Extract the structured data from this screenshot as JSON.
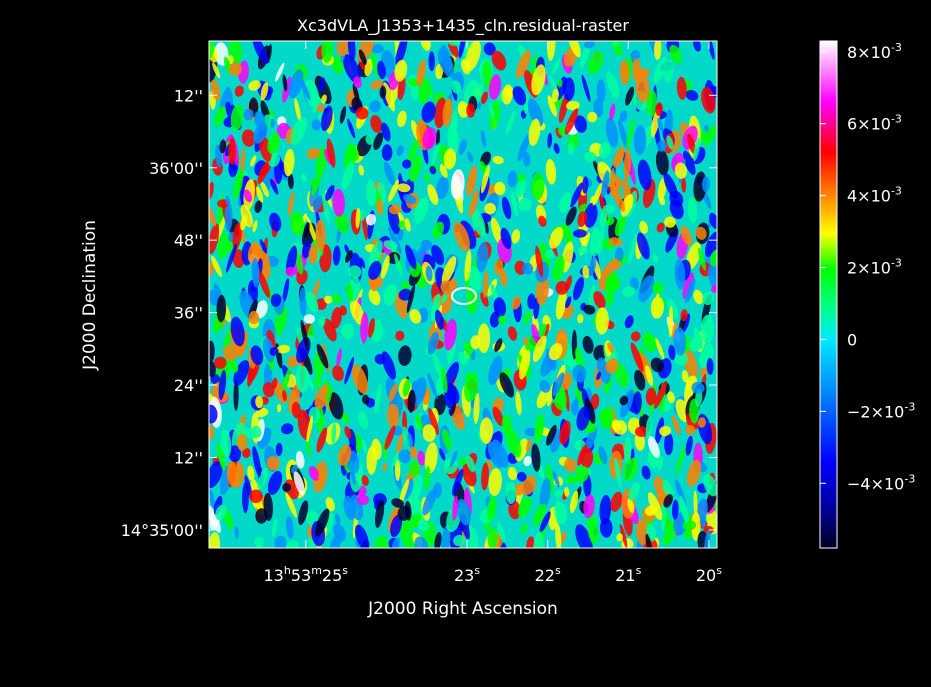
{
  "chart_data": {
    "type": "heatmap",
    "title": "Xc3dVLA_J1353+1435_cln.residual-raster",
    "xlabel": "J2000 Right Ascension",
    "ylabel": "J2000 Declination",
    "x_ticks": [
      {
        "h": "13",
        "m": "53",
        "s": "25",
        "ra_sec": 25
      },
      {
        "s": "23",
        "ra_sec": 23
      },
      {
        "s": "22",
        "ra_sec": 22
      },
      {
        "s": "21",
        "ra_sec": 21
      },
      {
        "s": "20",
        "ra_sec": 20
      }
    ],
    "y_ticks": [
      {
        "text": "12''",
        "dec_arcsec_offset": 72
      },
      {
        "text": "36'00''",
        "dec_arcsec_offset": 60
      },
      {
        "text": "48''",
        "dec_arcsec_offset": 48
      },
      {
        "text": "36''",
        "dec_arcsec_offset": 36
      },
      {
        "text": "24''",
        "dec_arcsec_offset": 24
      },
      {
        "text": "12''",
        "dec_arcsec_offset": 12
      },
      {
        "text": "14°35'00''",
        "dec_arcsec_offset": 0
      }
    ],
    "xlim_ra_sec": [
      26.2,
      19.9
    ],
    "ylim_dec_arcsec": [
      -3,
      81
    ],
    "colorbar": {
      "ticks": [
        {
          "mantissa": "8",
          "exp": "-3",
          "value": 0.008
        },
        {
          "mantissa": "6",
          "exp": "-3",
          "value": 0.006
        },
        {
          "mantissa": "4",
          "exp": "-3",
          "value": 0.004
        },
        {
          "mantissa": "2",
          "exp": "-3",
          "value": 0.002
        },
        {
          "text": "0",
          "value": 0
        },
        {
          "mantissa": "−2",
          "exp": "-3",
          "value": -0.002
        },
        {
          "mantissa": "−4",
          "exp": "-3",
          "value": -0.004
        }
      ],
      "range": [
        -0.0058,
        0.0083
      ],
      "colormap": [
        "#000030",
        "#0000ff",
        "#00e0ff",
        "#00ff00",
        "#ffff00",
        "#ff8000",
        "#ff0000",
        "#ff00ff",
        "#ffffff"
      ]
    },
    "image": {
      "background": "#00d8c8",
      "contour_color": "#ffffff"
    }
  }
}
